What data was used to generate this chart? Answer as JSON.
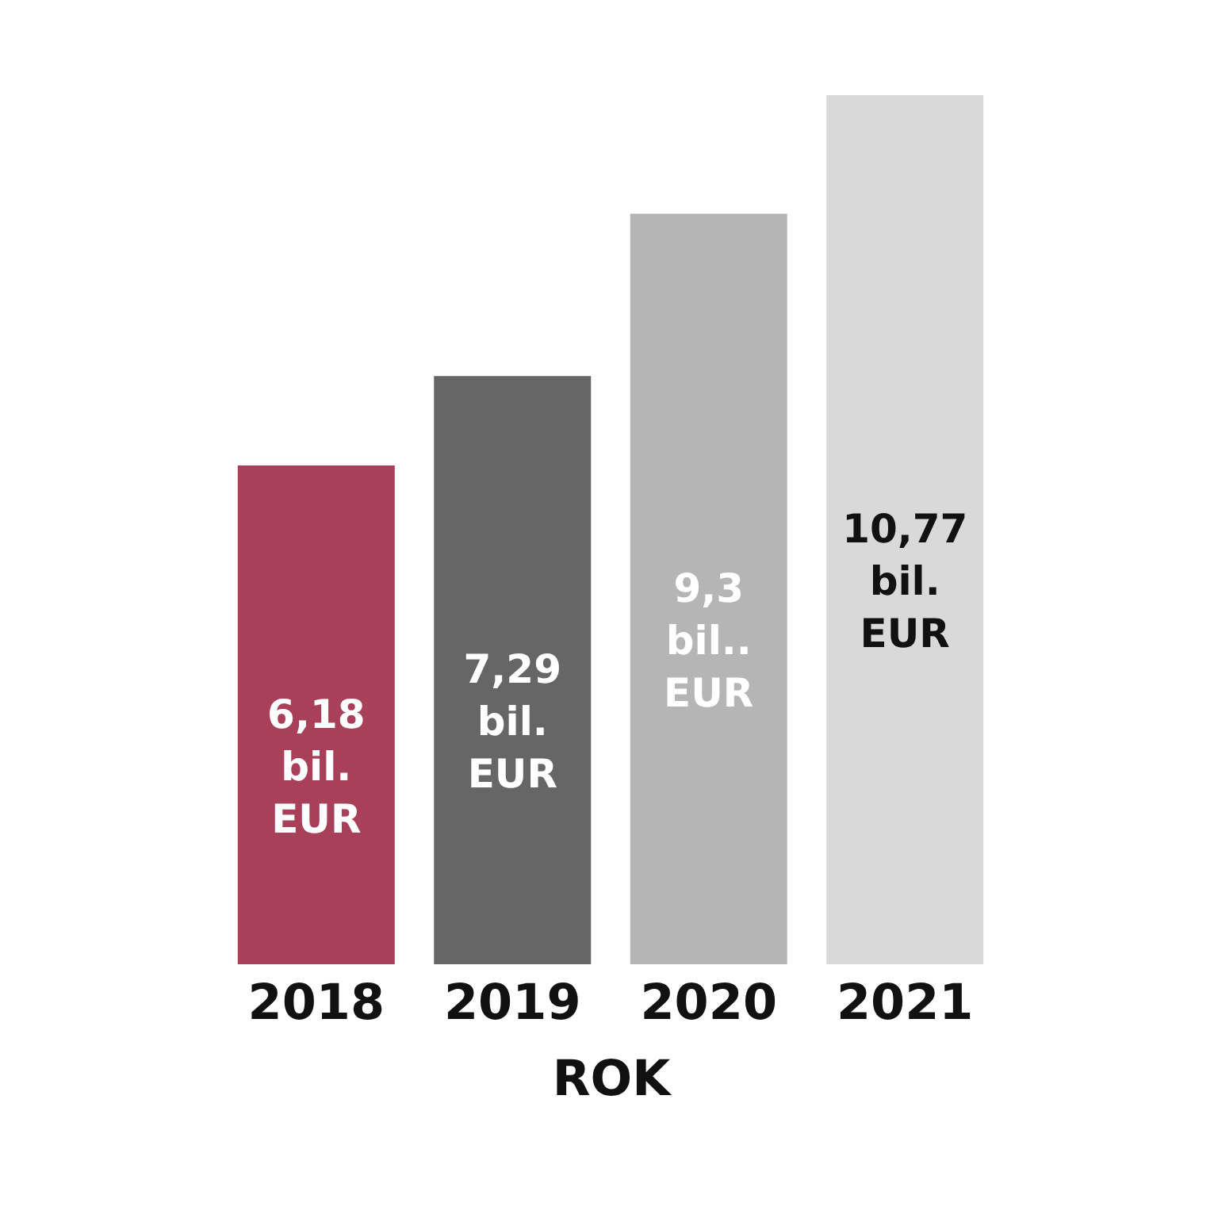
{
  "chart_data": {
    "type": "bar",
    "xlabel": "ROK",
    "categories": [
      "2018",
      "2019",
      "2020",
      "2021"
    ],
    "values": [
      6.18,
      7.29,
      9.3,
      10.77
    ],
    "colors": [
      "#a84059",
      "#666666",
      "#b5b5b5",
      "#d9d9d9"
    ],
    "value_labels": [
      "6,18 bil. EUR",
      "7,29 bil. EUR",
      "9,3 bil.. EUR",
      "10,77 bil. EUR"
    ],
    "tick_labels": "x"
  }
}
